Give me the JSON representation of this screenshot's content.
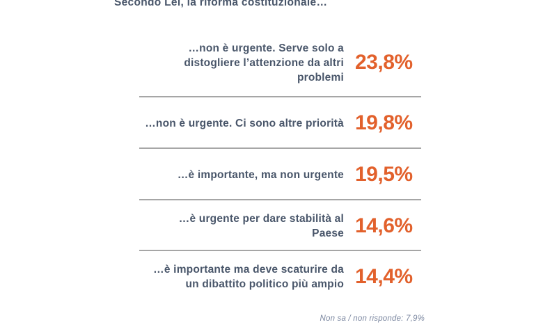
{
  "title": "Secondo Lei, la riforma costituzionale…",
  "rows": [
    {
      "label": "…non è urgente. Serve solo a\ndistogliere l’attenzione da altri\nproblemi",
      "value": "23,8%"
    },
    {
      "label": "…non è urgente. Ci sono altre priorità",
      "value": "19,8%"
    },
    {
      "label": "…è importante, ma non urgente",
      "value": "19,5%"
    },
    {
      "label": "…è urgente per dare stabilità al\nPaese",
      "value": "14,6%"
    },
    {
      "label": "…è importante ma deve scaturire da\nun dibattito politico più ampio",
      "value": "14,4%"
    }
  ],
  "footnote": "Non sa / non risponde: 7,9%",
  "chart_data": {
    "type": "table",
    "title": "Secondo Lei, la riforma costituzionale…",
    "categories": [
      "…non è urgente. Serve solo a distogliere l’attenzione da altri problemi",
      "…non è urgente. Ci sono altre priorità",
      "…è importante, ma non urgente",
      "…è urgente per dare stabilità al Paese",
      "…è importante ma deve scaturire da un dibattito politico più ampio"
    ],
    "values": [
      23.8,
      19.8,
      19.5,
      14.6,
      14.4
    ],
    "value_labels": [
      "23,8%",
      "19,8%",
      "19,5%",
      "14,6%",
      "14,4%"
    ],
    "unit": "%",
    "non_response_label": "Non sa / non risponde",
    "non_response_value": 7.9,
    "legend_position": "none",
    "grid": false
  },
  "colors": {
    "accent_orange": "#E2612C",
    "text_slate": "#49566A",
    "separator_gray": "#A6A6A6",
    "footnote_gray": "#7B87A0"
  }
}
